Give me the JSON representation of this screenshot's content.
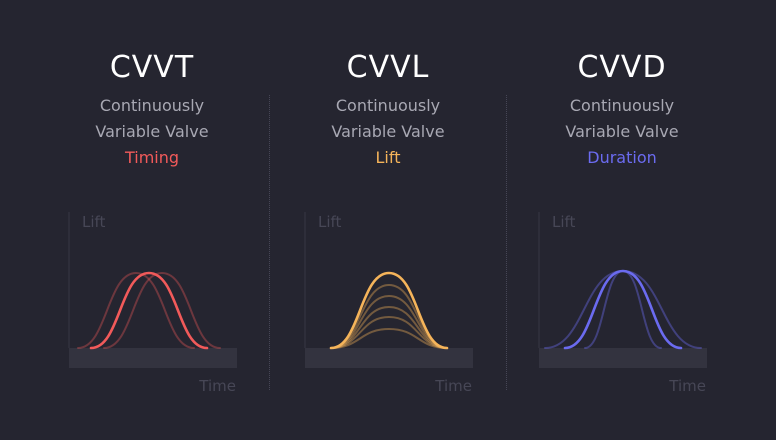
{
  "panels": [
    {
      "id": "cvvt",
      "title": "CVVT",
      "line1": "Continuously",
      "line2": "Variable Valve",
      "highlight": "Timing",
      "highlight_color": "#f25a5a",
      "ylabel": "Lift",
      "xlabel": "Time"
    },
    {
      "id": "cvvl",
      "title": "CVVL",
      "line1": "Continuously",
      "line2": "Variable Valve",
      "highlight": "Lift",
      "highlight_color": "#f5b45a",
      "ylabel": "Lift",
      "xlabel": "Time"
    },
    {
      "id": "cvvd",
      "title": "CVVD",
      "line1": "Continuously",
      "line2": "Variable Valve",
      "highlight": "Duration",
      "highlight_color": "#6b6bf0",
      "ylabel": "Lift",
      "xlabel": "Time"
    }
  ]
}
